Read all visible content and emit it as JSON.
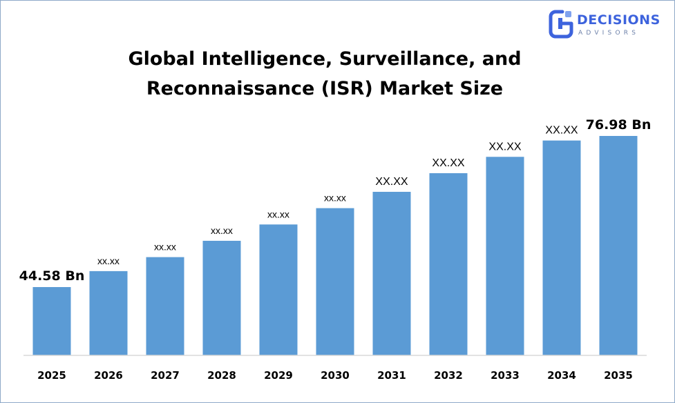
{
  "brand": {
    "name": "DECISIONS",
    "subtitle": "ADVISORS",
    "color": "#3d63dd"
  },
  "title_line1": "Global Intelligence, Surveillance, and",
  "title_line2": "Reconnaissance (ISR) Market Size",
  "chart_data": {
    "type": "bar",
    "title": "Global Intelligence, Surveillance, and Reconnaissance (ISR) Market Size",
    "categories": [
      "2025",
      "2026",
      "2027",
      "2028",
      "2029",
      "2030",
      "2031",
      "2032",
      "2033",
      "2034",
      "2035"
    ],
    "values": [
      44.58,
      48.0,
      51.0,
      54.5,
      58.0,
      61.5,
      65.0,
      69.0,
      72.5,
      76.0,
      76.98
    ],
    "data_labels": [
      "44.58 Bn",
      "xx.xx",
      "xx.xx",
      "xx.xx",
      "xx.xx",
      "xx.xx",
      "XX.XX",
      "XX.XX",
      "XX.XX",
      "XX.XX",
      "76.98 Bn"
    ],
    "bar_color": "#5b9bd5",
    "axis_color": "#d9d9d9",
    "grid": false,
    "legend": "none",
    "xlabel": "",
    "ylabel": ""
  }
}
